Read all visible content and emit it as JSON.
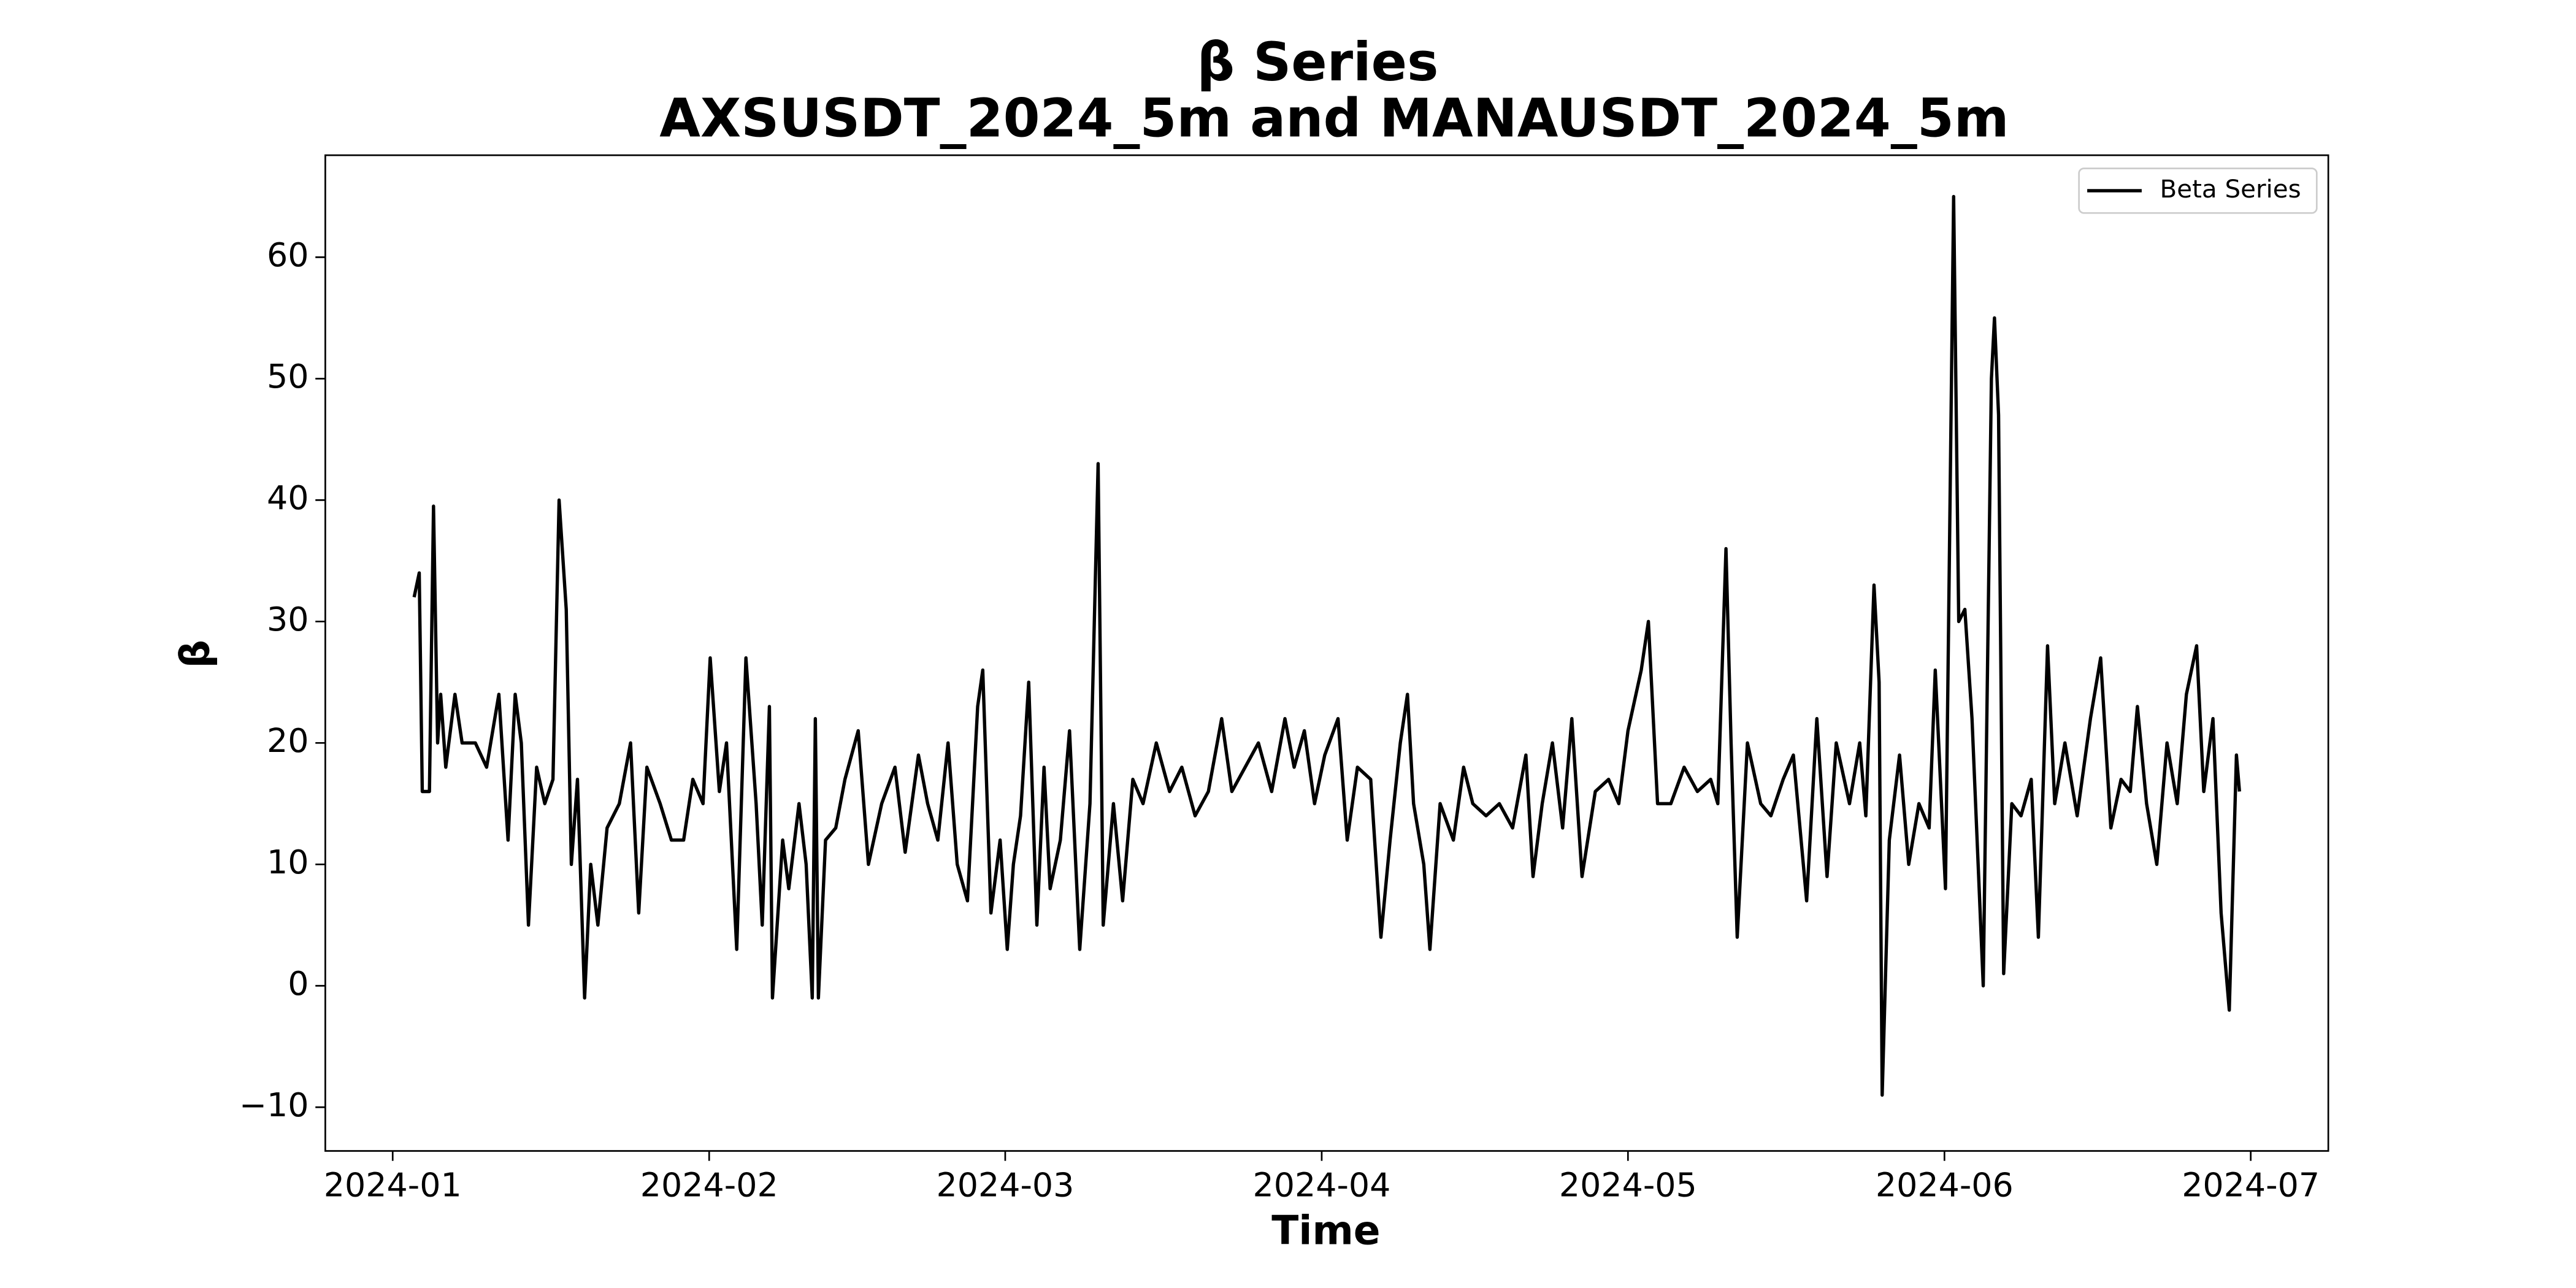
{
  "chart_data": {
    "type": "line",
    "title": "β Series",
    "subtitle": "AXSUSDT_2024_5m and MANAUSDT_2024_5m",
    "x_label": "Time",
    "y_label": "β",
    "legend": "upper right",
    "grid": false,
    "xlim": [
      -6.6,
      189.6
    ],
    "xticks": [
      {
        "value": 0,
        "label": "2024-01"
      },
      {
        "value": 31,
        "label": "2024-02"
      },
      {
        "value": 60,
        "label": "2024-03"
      },
      {
        "value": 91,
        "label": "2024-04"
      },
      {
        "value": 121,
        "label": "2024-05"
      },
      {
        "value": 152,
        "label": "2024-06"
      },
      {
        "value": 182,
        "label": "2024-07"
      }
    ],
    "ylim": [
      -13.6,
      68.4
    ],
    "yticks": [
      {
        "value": -10,
        "label": "−10"
      },
      0,
      10,
      20,
      30,
      40,
      50,
      60
    ],
    "x": [
      2.1,
      2.6,
      2.9,
      3.6,
      4.0,
      4.4,
      4.7,
      5.2,
      6.1,
      6.8,
      8.1,
      9.2,
      10.4,
      11.3,
      12.0,
      12.6,
      13.3,
      14.1,
      14.9,
      15.7,
      16.3,
      17.0,
      17.5,
      18.1,
      18.8,
      19.4,
      20.1,
      21.0,
      22.2,
      23.3,
      24.1,
      24.9,
      26.2,
      27.3,
      28.5,
      29.4,
      30.4,
      31.1,
      32.0,
      32.7,
      33.7,
      34.6,
      35.6,
      36.2,
      36.9,
      37.2,
      38.2,
      38.8,
      39.8,
      40.5,
      41.1,
      41.4,
      41.7,
      42.4,
      43.4,
      44.3,
      45.6,
      46.6,
      47.9,
      49.2,
      50.2,
      51.5,
      52.4,
      53.4,
      54.4,
      55.3,
      56.3,
      57.3,
      57.8,
      58.6,
      59.5,
      60.2,
      60.8,
      61.5,
      62.3,
      63.1,
      63.8,
      64.4,
      65.4,
      66.3,
      67.3,
      68.3,
      69.1,
      69.6,
      70.6,
      71.5,
      72.5,
      73.5,
      74.8,
      76.1,
      77.3,
      78.6,
      79.9,
      81.2,
      82.2,
      83.5,
      84.8,
      86.1,
      87.4,
      88.3,
      89.3,
      90.3,
      91.3,
      92.6,
      93.5,
      94.5,
      95.8,
      96.8,
      97.7,
      98.7,
      99.4,
      100.0,
      101.0,
      101.6,
      102.6,
      103.9,
      104.9,
      105.8,
      107.1,
      108.4,
      109.7,
      111.0,
      111.7,
      112.6,
      113.6,
      114.6,
      115.5,
      116.5,
      117.8,
      119.1,
      120.1,
      121.0,
      122.3,
      123.0,
      123.9,
      125.2,
      126.5,
      127.8,
      129.1,
      129.8,
      130.6,
      131.1,
      131.7,
      132.7,
      134.0,
      135.0,
      136.2,
      137.2,
      138.5,
      139.5,
      140.5,
      141.4,
      142.7,
      143.7,
      144.3,
      145.1,
      145.6,
      145.9,
      146.6,
      147.6,
      148.5,
      149.5,
      150.5,
      151.1,
      152.1,
      152.9,
      153.4,
      154.0,
      154.7,
      155.3,
      155.8,
      156.6,
      156.9,
      157.3,
      157.8,
      158.6,
      159.5,
      160.5,
      161.2,
      162.1,
      162.8,
      163.8,
      165.0,
      166.3,
      167.3,
      168.3,
      169.3,
      170.2,
      170.9,
      171.8,
      172.8,
      173.8,
      174.8,
      175.7,
      176.7,
      177.4,
      178.3,
      179.1,
      179.9,
      180.6,
      180.9
    ],
    "series": [
      {
        "name": "Beta Series",
        "color": "#000000",
        "values": [
          32,
          34,
          16,
          16,
          39.5,
          20,
          24,
          18,
          24,
          20,
          20,
          18,
          24,
          12,
          24,
          20,
          5,
          18,
          15,
          17,
          40,
          31,
          10,
          17,
          -1,
          10,
          5,
          13,
          15,
          20,
          6,
          18,
          15,
          12,
          12,
          17,
          15,
          27,
          16,
          20,
          3,
          27,
          15,
          5,
          23,
          -1,
          12,
          8,
          15,
          10,
          -1,
          22,
          -1,
          12,
          13,
          17,
          21,
          10,
          15,
          18,
          11,
          19,
          15,
          12,
          20,
          10,
          7,
          23,
          26,
          6,
          12,
          3,
          10,
          14,
          25,
          5,
          18,
          8,
          12,
          21,
          3,
          15,
          43,
          5,
          15,
          7,
          17,
          15,
          20,
          16,
          18,
          14,
          16,
          22,
          16,
          18,
          20,
          16,
          22,
          18,
          21,
          15,
          19,
          22,
          12,
          18,
          17,
          4,
          12,
          20,
          24,
          15,
          10,
          3,
          15,
          12,
          18,
          15,
          14,
          15,
          13,
          19,
          9,
          15,
          20,
          13,
          22,
          9,
          16,
          17,
          15,
          21,
          26,
          30,
          15,
          15,
          18,
          16,
          17,
          15,
          36,
          20,
          4,
          20,
          15,
          14,
          17,
          19,
          7,
          22,
          9,
          20,
          15,
          20,
          14,
          33,
          25,
          -9,
          12,
          19,
          10,
          15,
          13,
          26,
          8,
          65,
          30,
          31,
          22,
          10,
          0,
          50,
          55,
          47,
          1,
          15,
          14,
          17,
          4,
          28,
          15,
          20,
          14,
          22,
          27,
          13,
          17,
          16,
          23,
          15,
          10,
          20,
          15,
          24,
          28,
          16,
          22,
          6,
          -2,
          19,
          16
        ]
      }
    ]
  }
}
